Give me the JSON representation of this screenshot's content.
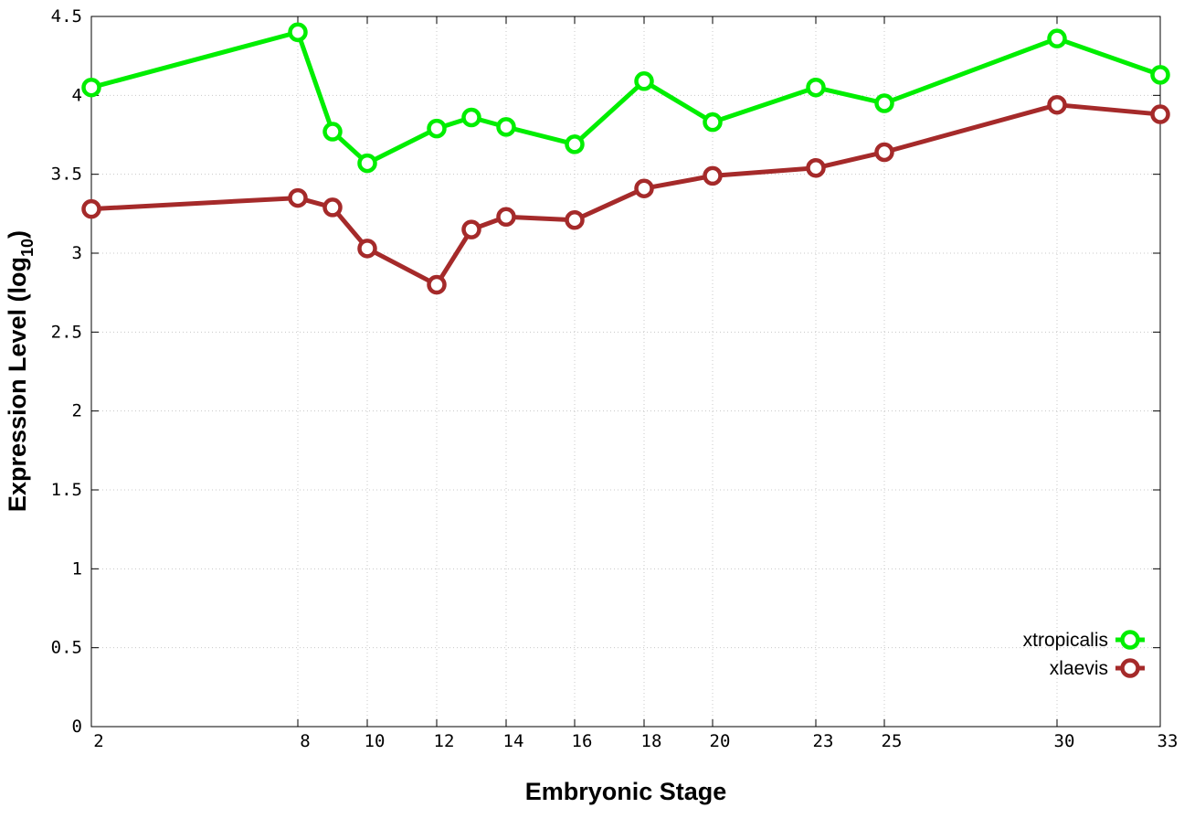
{
  "chart_data": {
    "type": "line",
    "title": "",
    "xlabel": "Embryonic Stage",
    "ylabel_main": "Expression Level (log",
    "ylabel_sub": "10",
    "ylabel_close": ")",
    "x_tick_labels": [
      "2",
      "8",
      "10",
      "12",
      "14",
      "16",
      "18",
      "20",
      "23",
      "25",
      "30",
      "33"
    ],
    "x_stages": [
      2,
      8,
      9,
      10,
      12,
      13,
      14,
      16,
      18,
      20,
      23,
      25,
      30,
      33
    ],
    "y_ticks": [
      "0",
      "0.5",
      "1",
      "1.5",
      "2",
      "2.5",
      "3",
      "3.5",
      "4",
      "4.5"
    ],
    "ylim": [
      0,
      4.5
    ],
    "grid": true,
    "legend_position": "bottom-right",
    "series": [
      {
        "name": "xtropicalis",
        "color": "#00ee00",
        "values": [
          4.05,
          4.4,
          3.77,
          3.57,
          3.79,
          3.86,
          3.8,
          3.69,
          4.09,
          3.83,
          4.05,
          3.95,
          4.36,
          4.13
        ]
      },
      {
        "name": "xlaevis",
        "color": "#a52a2a",
        "values": [
          3.28,
          3.35,
          3.29,
          3.03,
          2.8,
          3.15,
          3.23,
          3.21,
          3.41,
          3.49,
          3.54,
          3.64,
          3.94,
          3.88
        ]
      }
    ]
  }
}
